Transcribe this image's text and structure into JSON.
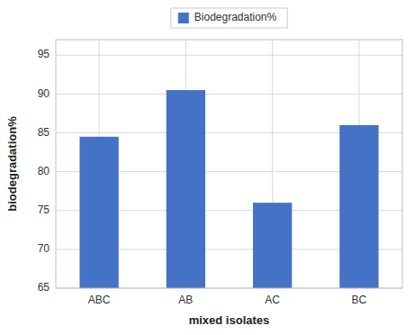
{
  "chart_data": {
    "type": "bar",
    "categories": [
      "ABC",
      "AB",
      "AC",
      "BC"
    ],
    "series": [
      {
        "name": "Biodegradation%",
        "color": "#4472C4",
        "values": [
          84.5,
          90.5,
          76.0,
          86.0
        ]
      }
    ],
    "xlabel": "mixed isolates",
    "ylabel": "biodegradation%",
    "ylim": [
      65,
      97
    ],
    "yticks": [
      65,
      70,
      75,
      80,
      85,
      90,
      95
    ],
    "grid": true,
    "legend": "top"
  }
}
